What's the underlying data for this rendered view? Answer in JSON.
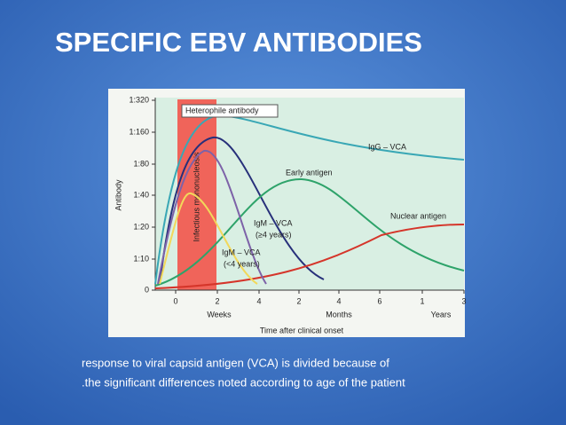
{
  "title": "SPECIFIC EBV ANTIBODIES",
  "caption": [
    "response to viral capsid antigen (VCA) is divided because of",
    ".the significant differences noted according to age of the patient"
  ],
  "chart": {
    "y_axis_label": "Antibody",
    "yticks": [
      "1:320",
      "1:160",
      "1:80",
      "1:40",
      "1:20",
      "1:10",
      "0"
    ],
    "xticks": [
      "0",
      "2",
      "4",
      "2",
      "4",
      "6",
      "1",
      "3"
    ],
    "x_units": [
      "Weeks",
      "Months",
      "Years"
    ],
    "x_axis_label": "Time after clinical onset",
    "band_label": "Infectious mononucleosis",
    "curve_labels": {
      "heterophile": "Heterophile antibody",
      "igg": "IgG – VCA",
      "early": "Early antigen",
      "nuclear": "Nuclear antigen",
      "igm_old": [
        "IgM – VCA",
        "(≥4 years)"
      ],
      "igm_young": [
        "IgM – VCA",
        "(<4 years)"
      ]
    }
  }
}
